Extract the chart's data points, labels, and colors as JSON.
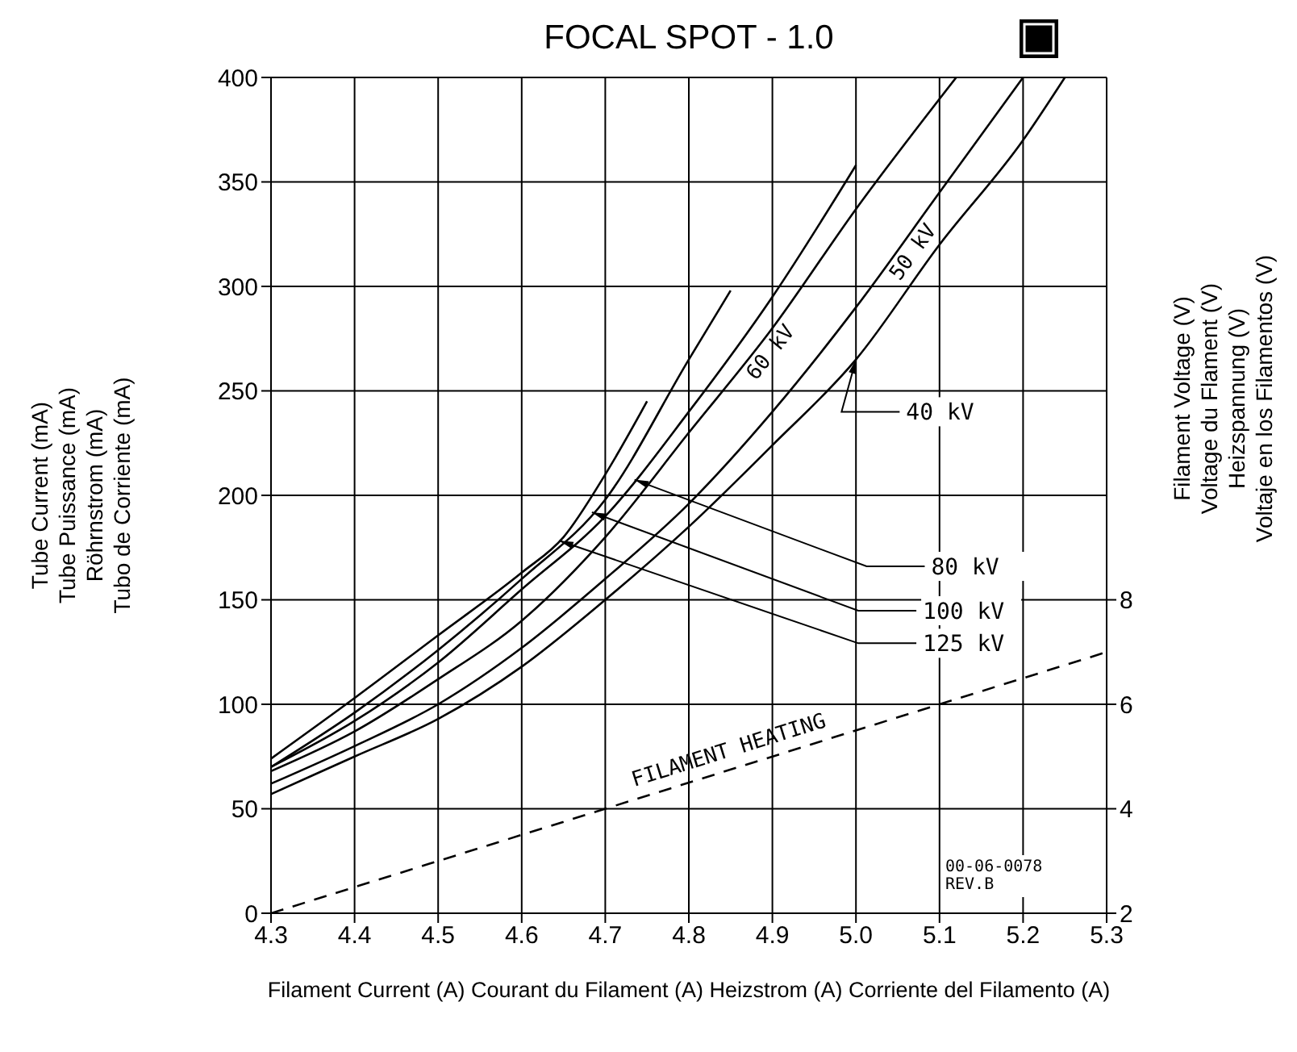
{
  "chart_data": {
    "type": "line",
    "title": "FOCAL SPOT - 1.0",
    "xlabel": "Filament Current (A)  Courant du Filament (A)  Heizstrom (A)  Corriente del Filamento (A)",
    "ylabel": "Tube Current (mA)\nTube Puissance (mA)\nRöhrnstrom (mA)\nTubo de Corriente (mA)",
    "y2label": "Filament Voltage (V)\nVoltage du Flament  (V)\nHeizspannung (V)\nVoltaje en los Filamentos (V)",
    "xlim": [
      4.3,
      5.3
    ],
    "xticks": [
      4.3,
      4.4,
      4.5,
      4.6,
      4.7,
      4.8,
      4.9,
      {
        "value": 5,
        "label": "5.0"
      },
      5.1,
      5.2,
      5.3
    ],
    "ylim": [
      0,
      400
    ],
    "yticks": [
      0,
      50,
      100,
      150,
      200,
      250,
      300,
      350,
      400
    ],
    "y2lim": [
      2,
      18
    ],
    "y2ticks": [
      2,
      4,
      6,
      8
    ],
    "grid": true,
    "marker": "none",
    "line_style": "solid",
    "annotations": [
      "00-06-0078\nREV.B"
    ],
    "series": [
      {
        "name": "40 kV",
        "color": "#000000",
        "x": [
          4.3,
          4.4,
          4.5,
          4.6,
          4.7,
          4.8,
          4.9,
          5.0,
          5.1,
          5.2,
          5.25
        ],
        "values": [
          57,
          75,
          93,
          118,
          150,
          185,
          224,
          265,
          320,
          370,
          400
        ]
      },
      {
        "name": "50 kV",
        "color": "#000000",
        "x": [
          4.3,
          4.4,
          4.5,
          4.6,
          4.7,
          4.8,
          4.9,
          5.0,
          5.1,
          5.2
        ],
        "values": [
          62,
          80,
          100,
          127,
          160,
          196,
          240,
          290,
          345,
          400
        ]
      },
      {
        "name": "60 kV",
        "color": "#000000",
        "x": [
          4.3,
          4.4,
          4.5,
          4.6,
          4.7,
          4.8,
          4.9,
          5.0,
          5.12
        ],
        "values": [
          68,
          87,
          112,
          140,
          180,
          230,
          280,
          337,
          400
        ]
      },
      {
        "name": "80 kV",
        "color": "#000000",
        "x": [
          4.3,
          4.4,
          4.5,
          4.6,
          4.7,
          4.8,
          4.9,
          5.0
        ],
        "values": [
          70,
          92,
          120,
          155,
          190,
          240,
          295,
          358
        ]
      },
      {
        "name": "100 kV",
        "color": "#000000",
        "x": [
          4.3,
          4.4,
          4.5,
          4.6,
          4.7,
          4.8,
          4.85
        ],
        "values": [
          70,
          96,
          126,
          160,
          198,
          265,
          298
        ]
      },
      {
        "name": "125 kV",
        "color": "#000000",
        "x": [
          4.3,
          4.4,
          4.5,
          4.6,
          4.65,
          4.7,
          4.75
        ],
        "values": [
          74,
          103,
          133,
          163,
          180,
          210,
          245
        ]
      },
      {
        "name": "FILAMENT HEATING",
        "color": "#000000",
        "axis": "y2",
        "line_style": "dashed",
        "x": [
          4.3,
          4.7,
          5.1,
          5.3
        ],
        "values": [
          2.0,
          4.0,
          6.0,
          7.0
        ]
      }
    ]
  }
}
